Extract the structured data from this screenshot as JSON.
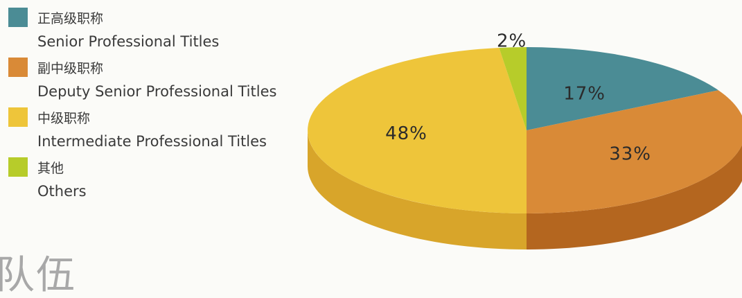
{
  "chart_data": {
    "type": "pie",
    "title": "",
    "legend_position": "left",
    "categories": [
      {
        "cn": "正高级职称",
        "en": "Senior Professional Titles"
      },
      {
        "cn": "副中级职称",
        "en": "Deputy Senior Professional Titles"
      },
      {
        "cn": "中级职称",
        "en": "Intermediate Professional Titles"
      },
      {
        "cn": "其他",
        "en": "Others"
      }
    ],
    "values": [
      17,
      33,
      48,
      2
    ],
    "value_labels": [
      "17%",
      "33%",
      "48%",
      "2%"
    ],
    "colors": [
      "#4b8c95",
      "#d98a37",
      "#eec53a",
      "#b7cc2a"
    ],
    "side_colors": [
      "#34686f",
      "#b4661f",
      "#d8a52a",
      "#8ea31c"
    ]
  },
  "bottom_title": "队伍"
}
